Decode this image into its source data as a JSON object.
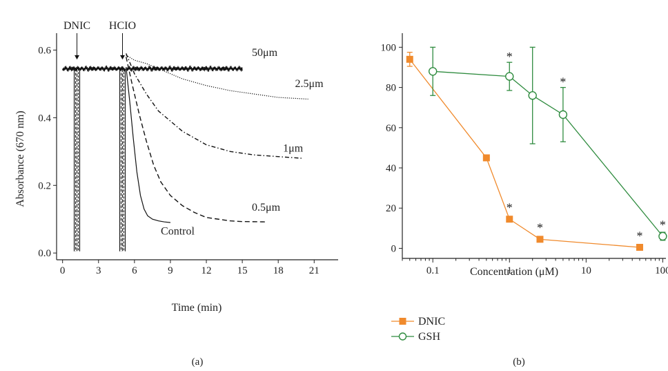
{
  "chart_data": [
    {
      "type": "line",
      "panel_label": "(a)",
      "xlabel": "Time (min)",
      "ylabel": "Absorbance (670 nm)",
      "xlim": [
        -0.5,
        23
      ],
      "ylim": [
        -0.02,
        0.65
      ],
      "xticks": [
        0,
        3,
        6,
        9,
        12,
        15,
        18,
        21
      ],
      "yticks": [
        0.0,
        0.2,
        0.4,
        0.6
      ],
      "ytick_labels": [
        "0.0",
        "0.2",
        "0.4",
        "0.6"
      ],
      "events": [
        {
          "label": "DNIC",
          "x": 1.2
        },
        {
          "label": "HCIO",
          "x": 5.0
        }
      ],
      "series": [
        {
          "name": "50μm",
          "style": "solid-noisy",
          "x": [
            5.3,
            6,
            8,
            10,
            12,
            14,
            15
          ],
          "y": [
            0.545,
            0.545,
            0.545,
            0.545,
            0.545,
            0.545,
            0.545
          ]
        },
        {
          "name": "2.5μm",
          "style": "dotted",
          "x": [
            5.3,
            6,
            7,
            8,
            9,
            10,
            12,
            14,
            16,
            18,
            20.5
          ],
          "y": [
            0.585,
            0.57,
            0.56,
            0.545,
            0.53,
            0.515,
            0.495,
            0.48,
            0.47,
            0.46,
            0.455
          ]
        },
        {
          "name": "1μm",
          "style": "dashdot",
          "x": [
            5.3,
            6,
            7,
            8,
            9,
            10,
            11,
            12,
            13,
            14,
            16,
            18,
            20
          ],
          "y": [
            0.59,
            0.53,
            0.47,
            0.42,
            0.39,
            0.36,
            0.34,
            0.32,
            0.31,
            0.3,
            0.29,
            0.285,
            0.28
          ]
        },
        {
          "name": "0.5μm",
          "style": "dashed",
          "x": [
            5.3,
            5.8,
            6.4,
            7,
            7.6,
            8.2,
            9,
            10,
            11,
            12,
            13,
            14,
            15,
            17
          ],
          "y": [
            0.58,
            0.5,
            0.41,
            0.33,
            0.26,
            0.21,
            0.17,
            0.14,
            0.12,
            0.105,
            0.1,
            0.095,
            0.093,
            0.092
          ]
        },
        {
          "name": "Control",
          "style": "solid",
          "x": [
            5.3,
            5.6,
            5.9,
            6.2,
            6.5,
            6.8,
            7.1,
            7.5,
            8,
            8.5,
            9
          ],
          "y": [
            0.55,
            0.45,
            0.34,
            0.24,
            0.17,
            0.13,
            0.11,
            0.1,
            0.095,
            0.092,
            0.09
          ]
        }
      ]
    },
    {
      "type": "line",
      "panel_label": "(b)",
      "xlabel": "Concentration (μM)",
      "ylabel": "",
      "xscale": "log",
      "xlim": [
        0.04,
        110
      ],
      "ylim": [
        -5,
        107
      ],
      "xticks": [
        0.1,
        1,
        10,
        100
      ],
      "xtick_labels": [
        "0.1",
        "1",
        "10",
        "100"
      ],
      "yticks": [
        0,
        20,
        40,
        60,
        80,
        100
      ],
      "significance_marker": "*",
      "series": [
        {
          "name": "DNIC",
          "color": "#f08a2c",
          "marker": "filled-square",
          "x": [
            0.05,
            0.5,
            1,
            2.5,
            50
          ],
          "y": [
            94,
            45,
            14.5,
            4.5,
            0.5
          ],
          "yerr": [
            3.5,
            0,
            0,
            0,
            0
          ],
          "significant": [
            false,
            false,
            true,
            true,
            true
          ]
        },
        {
          "name": "GSH",
          "color": "#2e8b3e",
          "marker": "open-circle",
          "x": [
            0.1,
            1,
            2,
            5,
            100
          ],
          "y": [
            88,
            85.5,
            76,
            66.5,
            6
          ],
          "yerr": [
            12,
            7,
            24,
            13.5,
            2
          ],
          "significant": [
            false,
            true,
            false,
            true,
            true
          ]
        }
      ],
      "legend_placement": "bottom-left"
    }
  ]
}
